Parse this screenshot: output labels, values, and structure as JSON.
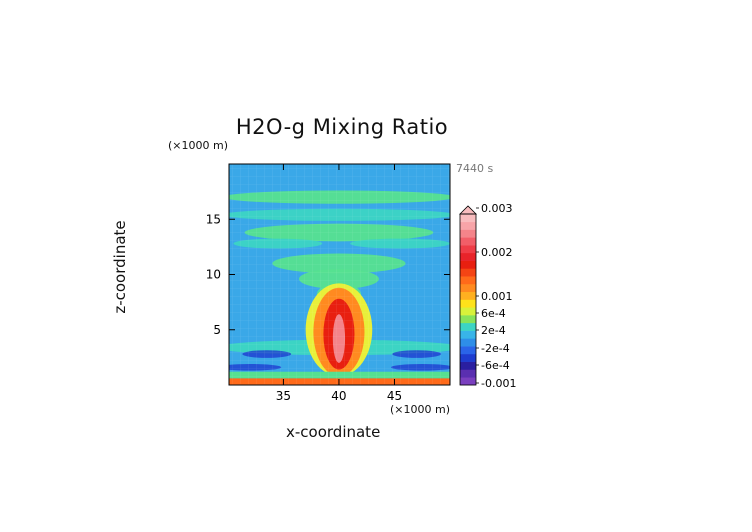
{
  "title": "H2O-g Mixing Ratio",
  "time_label": "7440 s",
  "x_unit": "(×1000 m)",
  "y_unit": "(×1000 m)",
  "chart_data": {
    "type": "heatmap",
    "title": "H2O-g Mixing Ratio",
    "xlabel": "x-coordinate",
    "ylabel": "z-coordinate",
    "x_unit": "(×1000 m)",
    "y_unit": "(×1000 m)",
    "annotation": "7440 s",
    "xlim": [
      30.1,
      50
    ],
    "ylim": [
      0,
      20
    ],
    "x_ticks": [
      35,
      40,
      45
    ],
    "y_ticks": [
      5,
      10,
      15
    ],
    "grid": false,
    "legend": "colorbar-right",
    "colorbar": {
      "tick_labels": [
        "0.003",
        "0.002",
        "0.001",
        "6e-4",
        "2e-4",
        "-2e-4",
        "-6e-4",
        "-0.001"
      ],
      "tick_values": [
        0.003,
        0.002,
        0.001,
        0.0006,
        0.0002,
        -0.0002,
        -0.0006,
        -0.001
      ],
      "levels": [
        {
          "color": "#7a3fbf"
        },
        {
          "color": "#5a2fb0"
        },
        {
          "color": "#2a1fa0"
        },
        {
          "color": "#1e3ccf"
        },
        {
          "color": "#2a64e8"
        },
        {
          "color": "#2e8ee8"
        },
        {
          "color": "#38b4e8"
        },
        {
          "color": "#3cd4c4"
        },
        {
          "color": "#88e35a"
        },
        {
          "color": "#d8f23a"
        },
        {
          "color": "#ffe21a"
        },
        {
          "color": "#ffb020"
        },
        {
          "color": "#ff8a20"
        },
        {
          "color": "#ff6a1a"
        },
        {
          "color": "#f44414"
        },
        {
          "color": "#e81f10"
        },
        {
          "color": "#e8232a"
        },
        {
          "color": "#ef3d47"
        },
        {
          "color": "#f25e68"
        },
        {
          "color": "#f4848a"
        },
        {
          "color": "#f7a4a8"
        },
        {
          "color": "#f8bcbe"
        }
      ]
    },
    "colors": {
      "background": "#3aa8e8",
      "band_green": "#56e090",
      "band_teal": "#3cd4c4",
      "core_yellow": "#e8f03a",
      "core_orange": "#ff8a20",
      "core_red": "#e81f10",
      "core_pink": "#f4848a",
      "dark_blue": "#1e3ccf",
      "surface_orange": "#ff6a1a"
    }
  }
}
